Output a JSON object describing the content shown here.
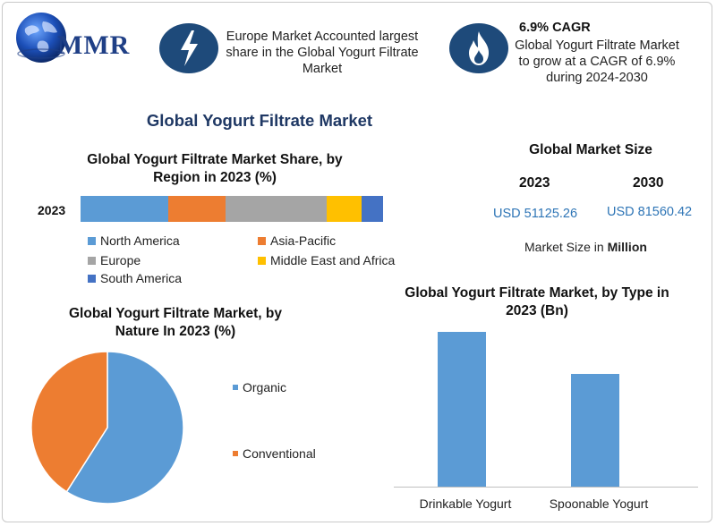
{
  "brand": {
    "logo_text": "MMR"
  },
  "header": {
    "left_icon": "lightning-icon",
    "left_text": "Europe Market Accounted largest share in the Global Yogurt Filtrate Market",
    "right_icon": "flame-icon",
    "right_title": "6.9% CAGR",
    "right_text": "Global Yogurt Filtrate Market to grow at a CAGR of 6.9% during 2024-2030"
  },
  "main_title": "Global Yogurt Filtrate Market",
  "market_size": {
    "title": "Global Market Size",
    "years": [
      "2023",
      "2030"
    ],
    "values": [
      "USD 51125.26",
      "USD 81560.42"
    ],
    "note_prefix": "Market Size in ",
    "note_unit": "Million"
  },
  "colors": {
    "north_america": "#5b9bd5",
    "asia_pacific": "#ed7d31",
    "europe": "#a5a5a5",
    "mea": "#ffc000",
    "south_america": "#4472c4",
    "organic": "#5b9bd5",
    "conventional": "#ed7d31",
    "type_bar": "#5b9bd5"
  },
  "chart_data": [
    {
      "type": "bar",
      "stacked": true,
      "orientation": "horizontal",
      "title": "Global Yogurt Filtrate Market Share, by Region in 2023 (%)",
      "categories": [
        "2023"
      ],
      "series": [
        {
          "name": "North America",
          "values": [
            29
          ]
        },
        {
          "name": "Asia-Pacific",
          "values": [
            19
          ]
        },
        {
          "name": "Europe",
          "values": [
            33.5
          ]
        },
        {
          "name": "Middle East and Africa",
          "values": [
            11.5
          ]
        },
        {
          "name": "South America",
          "values": [
            7
          ]
        }
      ],
      "legend_placement": "bottom"
    },
    {
      "type": "pie",
      "title": "Global Yogurt Filtrate Market, by Nature In 2023 (%)",
      "labels": [
        "Organic",
        "Conventional"
      ],
      "values": [
        59,
        41
      ],
      "legend_placement": "right"
    },
    {
      "type": "bar",
      "title": "Global Yogurt Filtrate Market, by Type in 2023 (Bn)",
      "categories": [
        "Drinkable Yogurt",
        "Spoonable Yogurt"
      ],
      "values": [
        100,
        73
      ],
      "ylim": [
        0,
        100
      ],
      "grid": false
    }
  ]
}
